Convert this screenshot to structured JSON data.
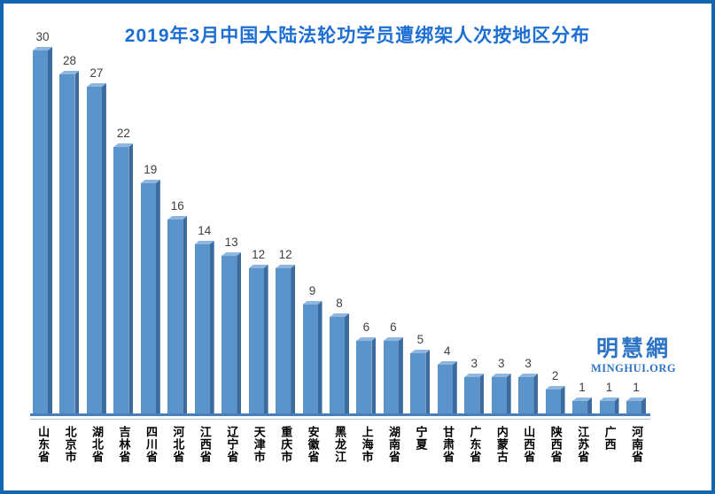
{
  "frame": {
    "border_color": "#1566B0",
    "background_color": "#FFFFFF"
  },
  "title": {
    "text": "2019年3月中国大陆法轮功学员遭绑架人次按地区分布",
    "color": "#1D6ED3"
  },
  "watermark": {
    "cn": "明慧網",
    "en": "MINGHUI.ORG",
    "color": "#2E74C4"
  },
  "chart_data": {
    "type": "bar",
    "title": "2019年3月中国大陆法轮功学员遭绑架人次按地区分布",
    "categories": [
      "山东省",
      "北京市",
      "湖北省",
      "吉林省",
      "四川省",
      "河北省",
      "江西省",
      "辽宁省",
      "天津市",
      "重庆市",
      "安徽省",
      "黑龙江",
      "上海市",
      "湖南省",
      "宁夏",
      "甘肃省",
      "广东省",
      "内蒙古",
      "山西省",
      "陕西省",
      "江苏省",
      "广西",
      "河南省"
    ],
    "values": [
      30,
      28,
      27,
      22,
      19,
      16,
      14,
      13,
      12,
      12,
      9,
      8,
      6,
      6,
      5,
      4,
      3,
      3,
      3,
      2,
      1,
      1,
      1
    ],
    "xlabel": "",
    "ylabel": "",
    "ylim": [
      0,
      30
    ],
    "grid": false,
    "legend_position": "none",
    "value_labels_shown": true,
    "bar_face_color": "#5B94CB",
    "bar_side_color": "#3C6C9F",
    "bar_top_color": "#8FB6DF",
    "value_label_color": "#3F3F3F",
    "axis_line_color": "#4A7EBB",
    "axis_thin_line_color": "#A5BFDE"
  }
}
